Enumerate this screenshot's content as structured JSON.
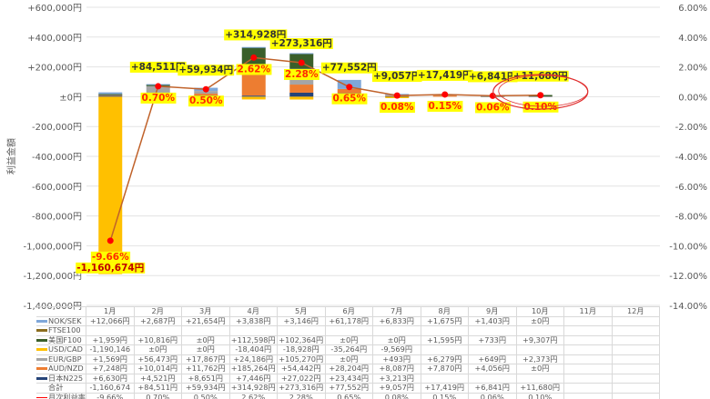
{
  "chart_data": {
    "type": "bar+line",
    "ylabel": "利益金額",
    "ylim": [
      -1400000,
      600000
    ],
    "y2lim": [
      -14,
      6
    ],
    "yticks": [
      "+600,000円",
      "+400,000円",
      "+200,000円",
      "±0円",
      "-200,000円",
      "-400,000円",
      "-600,000円",
      "-800,000円",
      "-1,000,000円",
      "-1,200,000円",
      "-1,400,000円"
    ],
    "y2ticks": [
      "6.00%",
      "4.00%",
      "2.00%",
      "0.00%",
      "-2.00%",
      "-4.00%",
      "-6.00%",
      "-8.00%",
      "-10.00%",
      "-12.00%",
      "-14.00%"
    ],
    "grid": true,
    "categories": [
      "1月",
      "2月",
      "3月",
      "4月",
      "5月",
      "6月",
      "7月",
      "8月",
      "9月",
      "10月",
      "11月",
      "12月"
    ],
    "series": [
      {
        "name": "NOK/SEK",
        "color": "#7fa7d9",
        "values": [
          12066,
          2687,
          21654,
          3838,
          3146,
          61178,
          6833,
          1675,
          1403,
          0,
          null,
          null
        ],
        "labels": [
          "+12,066円",
          "+2,687円",
          "+21,654円",
          "+3,838円",
          "+3,146円",
          "+61,178円",
          "+6,833円",
          "+1,675円",
          "+1,403円",
          "±0円",
          "",
          ""
        ]
      },
      {
        "name": "FTSE100",
        "color": "#8c6d1f",
        "values": [
          null,
          null,
          null,
          null,
          null,
          null,
          null,
          null,
          null,
          null,
          null,
          null
        ],
        "labels": [
          "",
          "",
          "",
          "",
          "",
          "",
          "",
          "",
          "",
          "",
          "",
          ""
        ]
      },
      {
        "name": "美国F100",
        "color": "#3a5f2a",
        "values": [
          1959,
          10816,
          0,
          112598,
          102364,
          0,
          0,
          1595,
          733,
          9307,
          null,
          null
        ],
        "labels": [
          "+1,959円",
          "+10,816円",
          "±0円",
          "+112,598円",
          "+102,364円",
          "±0円",
          "±0円",
          "+1,595円",
          "+733円",
          "+9,307円",
          "",
          ""
        ]
      },
      {
        "name": "USD/CAD",
        "color": "#ffc000",
        "values": [
          -1190146,
          0,
          0,
          -18404,
          -18928,
          -35264,
          -9569,
          null,
          null,
          null,
          null,
          null
        ],
        "labels": [
          "-1,190,146",
          "±0円",
          "±0円",
          "-18,404円",
          "-18,928円",
          "-35,264円",
          "-9,569円",
          "",
          "",
          "",
          "",
          ""
        ]
      },
      {
        "name": "EUR/GBP",
        "color": "#a5a5a5",
        "values": [
          1569,
          56473,
          17867,
          24186,
          105270,
          0,
          493,
          6279,
          649,
          2373,
          null,
          null
        ],
        "labels": [
          "+1,569円",
          "+56,473円",
          "+17,867円",
          "+24,186円",
          "+105,270円",
          "±0円",
          "+493円",
          "+6,279円",
          "+649円",
          "+2,373円",
          "",
          ""
        ]
      },
      {
        "name": "AUD/NZD",
        "color": "#ed7d31",
        "values": [
          7248,
          10014,
          11762,
          185264,
          54442,
          28204,
          8087,
          7870,
          4056,
          0,
          null,
          null
        ],
        "labels": [
          "+7,248円",
          "+10,014円",
          "+11,762円",
          "+185,264円",
          "+54,442円",
          "+28,204円",
          "+8,087円",
          "+7,870円",
          "+4,056円",
          "±0円",
          "",
          ""
        ]
      },
      {
        "name": "日本N225",
        "color": "#264478",
        "values": [
          6630,
          4521,
          8651,
          7446,
          27022,
          23434,
          3213,
          null,
          null,
          null,
          null,
          null
        ],
        "labels": [
          "+6,630円",
          "+4,521円",
          "+8,651円",
          "+7,446円",
          "+27,022円",
          "+23,434円",
          "+3,213円",
          "",
          "",
          "",
          "",
          ""
        ]
      }
    ],
    "total": {
      "name": "合計",
      "values": [
        -1160674,
        84511,
        59934,
        314928,
        273316,
        77552,
        9057,
        17419,
        6841,
        11680,
        null,
        null
      ],
      "labels": [
        "-1,160,674",
        "+84,511円",
        "+59,934円",
        "+314,928円",
        "+273,316円",
        "+77,552円",
        "+9,057円",
        "+17,419円",
        "+6,841円",
        "+11,680円",
        "",
        ""
      ],
      "chart_labels": [
        "-1,160,674円",
        "+84,511円",
        "+59,934円",
        "+314,928円",
        "+273,316円",
        "+77,552円",
        "+9,057円",
        "+17,419円",
        "+6,841円",
        "+11,680円"
      ]
    },
    "rate": {
      "name": "月次利益率",
      "axis": "right",
      "line_color": "#c0622a",
      "marker_color": "#ff0000",
      "values": [
        -9.66,
        0.7,
        0.5,
        2.62,
        2.28,
        0.65,
        0.08,
        0.15,
        0.06,
        0.1,
        null,
        null
      ],
      "labels": [
        "-9.66%",
        "0.70%",
        "0.50%",
        "2.62%",
        "2.28%",
        "0.65%",
        "0.08%",
        "0.15%",
        "0.06%",
        "0.10%",
        "",
        ""
      ]
    },
    "label_bg": "#ffff00",
    "pct_label_color": "#ff2a00",
    "annotation_color": "#e03030"
  }
}
